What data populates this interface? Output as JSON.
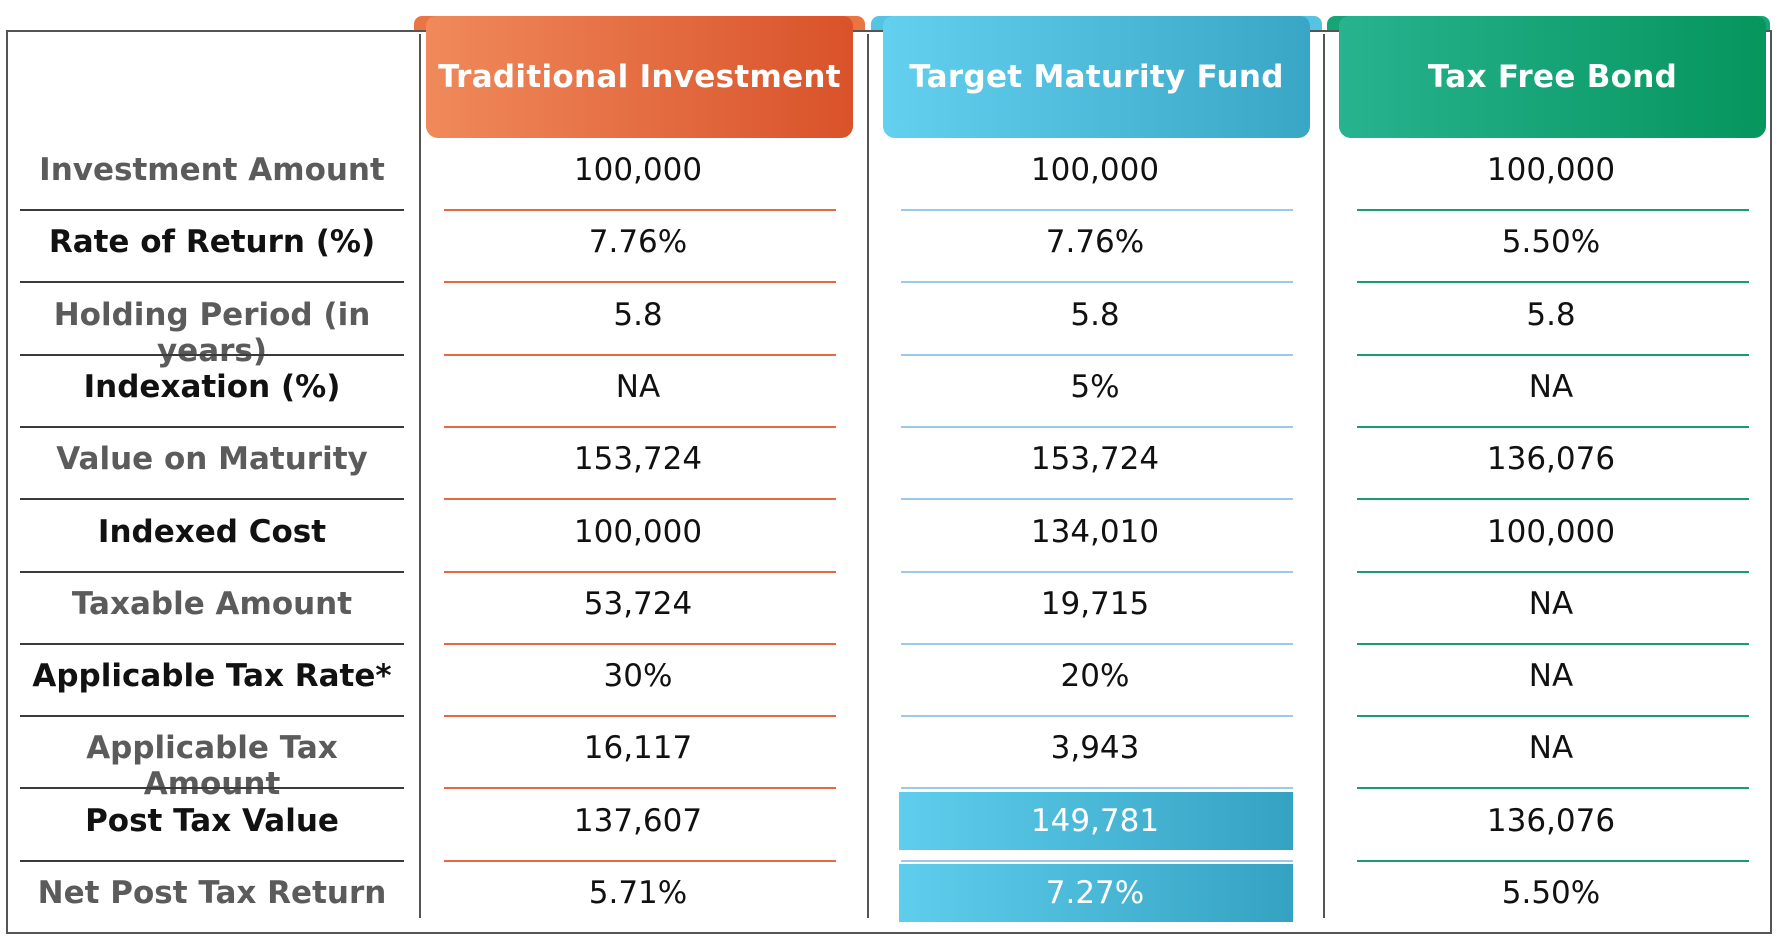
{
  "columns": [
    {
      "key": "traditional",
      "header": "Traditional Investment"
    },
    {
      "key": "tmf",
      "header": "Target Maturity Fund"
    },
    {
      "key": "taxfree",
      "header": "Tax Free Bond"
    }
  ],
  "rows": [
    {
      "label": "Investment Amount",
      "values": [
        "100,000",
        "100,000",
        "100,000"
      ]
    },
    {
      "label": "Rate of Return (%)",
      "values": [
        "7.76%",
        "7.76%",
        "5.50%"
      ]
    },
    {
      "label": "Holding Period (in years)",
      "values": [
        "5.8",
        "5.8",
        "5.8"
      ]
    },
    {
      "label": "Indexation (%)",
      "values": [
        "NA",
        "5%",
        "NA"
      ]
    },
    {
      "label": "Value on Maturity",
      "values": [
        "153,724",
        "153,724",
        "136,076"
      ]
    },
    {
      "label": "Indexed Cost",
      "values": [
        "100,000",
        "134,010",
        "100,000"
      ]
    },
    {
      "label": "Taxable Amount",
      "values": [
        "53,724",
        "19,715",
        "NA"
      ]
    },
    {
      "label": "Applicable Tax Rate*",
      "values": [
        "30%",
        "20%",
        "NA"
      ]
    },
    {
      "label": "Applicable Tax Amount",
      "values": [
        "16,117",
        "3,943",
        "NA"
      ]
    },
    {
      "label": "Post Tax Value",
      "values": [
        "137,607",
        "149,781",
        "136,076"
      ]
    },
    {
      "label": "Net Post Tax Return",
      "values": [
        "5.71%",
        "7.27%",
        "5.50%"
      ]
    }
  ],
  "colors": {
    "traditional": "#e2602f",
    "tmf": "#48b8da",
    "taxfree": "#0a9866",
    "highlight": "#48b8da"
  }
}
